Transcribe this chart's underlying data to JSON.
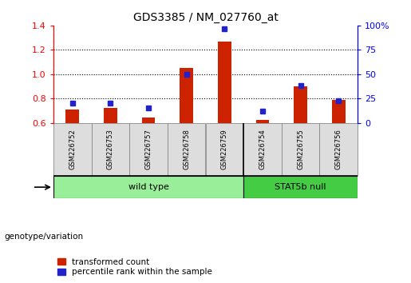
{
  "title": "GDS3385 / NM_027760_at",
  "samples": [
    "GSM226752",
    "GSM226753",
    "GSM226757",
    "GSM226758",
    "GSM226759",
    "GSM226754",
    "GSM226755",
    "GSM226756"
  ],
  "transformed_count": [
    0.71,
    0.72,
    0.64,
    1.05,
    1.27,
    0.62,
    0.9,
    0.79
  ],
  "percentile_rank": [
    20,
    20,
    15,
    50,
    97,
    12,
    38,
    23
  ],
  "ylim_left": [
    0.6,
    1.4
  ],
  "ylim_right": [
    0,
    100
  ],
  "yticks_left": [
    0.6,
    0.8,
    1.0,
    1.2,
    1.4
  ],
  "yticks_right": [
    0,
    25,
    50,
    75,
    100
  ],
  "ytick_labels_right": [
    "0",
    "25",
    "50",
    "75",
    "100%"
  ],
  "wild_type_indices": [
    0,
    1,
    2,
    3,
    4
  ],
  "stat5b_indices": [
    5,
    6,
    7
  ],
  "wild_type_label": "wild type",
  "stat5b_label": "STAT5b null",
  "genotype_label": "genotype/variation",
  "legend_red": "transformed count",
  "legend_blue": "percentile rank within the sample",
  "bar_color_red": "#CC2200",
  "bar_color_blue": "#2222CC",
  "wild_type_color": "#99EE99",
  "stat5b_color": "#44CC44",
  "background_color": "#ffffff",
  "bar_bottom": 0.6,
  "bar_width": 0.35,
  "label_box_color": "#DDDDDD",
  "label_box_edge": "#888888"
}
